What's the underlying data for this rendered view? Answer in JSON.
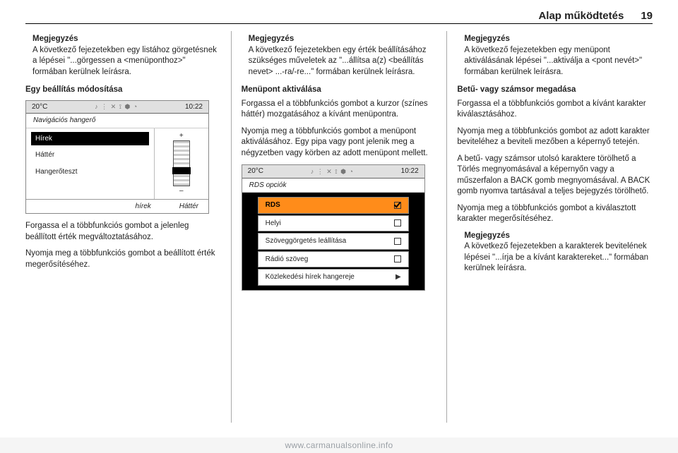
{
  "header": {
    "title": "Alap működtetés",
    "page": "19"
  },
  "watermark": "www.carmanualsonline.info",
  "col1": {
    "note": {
      "title": "Megjegyzés",
      "body": "A következő fejezetekben egy listához görgetésnek a lépései \"...görgessen a <menüponthoz>\" formában kerülnek leírásra."
    },
    "sect_title": "Egy beállítás módosítása",
    "para1": "Forgassa el a többfunkciós gombot a jelenleg beállított érték megváltoztatásához.",
    "para2": "Nyomja meg a többfunkciós gombot a beállított érték megerősítéséhez."
  },
  "col2": {
    "note": {
      "title": "Megjegyzés",
      "body": "A következő fejezetekben egy érték beállításához szükséges műveletek az \"...állítsa a(z) <beállítás nevet> ...-ra/-re...\" formában kerülnek leírásra."
    },
    "sect_title": "Menüpont aktiválása",
    "para1": "Forgassa el a többfunkciós gombot a kurzor (színes háttér) mozgatásához a kívánt menüpontra.",
    "para2": "Nyomja meg a többfunkciós gombot a menüpont aktiválásához. Egy pipa vagy pont jelenik meg a négyzetben vagy körben az adott menüpont mellett."
  },
  "col3": {
    "note1": {
      "title": "Megjegyzés",
      "body": "A következő fejezetekben egy menüpont aktiválásának lépései \"...aktiválja a <pont nevét>\" formában kerülnek leírásra."
    },
    "sect_title": "Betű- vagy számsor megadása",
    "para1": "Forgassa el a többfunkciós gombot a kívánt karakter kiválasztásához.",
    "para2": "Nyomja meg a többfunkciós gombot az adott karakter beviteléhez a beviteli mezőben a képernyő tetején.",
    "para3": "A betű- vagy számsor utolsó karaktere törölhető a Törlés megnyomásával a képernyőn vagy a műszerfalon a BACK gomb megnyomásával. A BACK gomb nyomva tartásával a teljes bejegyzés törölhető.",
    "para4": "Nyomja meg a többfunkciós gombot a kiválasztott karakter megerősítéséhez.",
    "note2": {
      "title": "Megjegyzés",
      "body": "A következő fejezetekben a karakterek bevitelének lépései \"...írja be a kívánt karaktereket...\" formában kerülnek leírásra."
    }
  },
  "shot1": {
    "temp": "20°C",
    "clock": "10:22",
    "title": "Navigációs hangerő",
    "items": [
      "Hírek",
      "Háttér",
      "Hangerőteszt"
    ],
    "selected_index": 0,
    "plus": "+",
    "minus": "–",
    "footer_left": "hírek",
    "footer_right": "Háttér",
    "colors": {
      "status_bg": "#e0e0e0",
      "sel_bg": "#000000",
      "sel_fg": "#ffffff"
    }
  },
  "shot2": {
    "temp": "20°C",
    "clock": "10:22",
    "title": "RDS opciók",
    "rows": [
      {
        "label": "RDS",
        "kind": "check",
        "checked": true,
        "selected": true
      },
      {
        "label": "Helyi",
        "kind": "check",
        "checked": false
      },
      {
        "label": "Szöveggörgetés leállítása",
        "kind": "check",
        "checked": false
      },
      {
        "label": "Rádió szöveg",
        "kind": "check",
        "checked": false
      },
      {
        "label": "Közlekedési hírek hangereje",
        "kind": "arrow"
      }
    ],
    "colors": {
      "panel_bg": "#000000",
      "row_bg": "#ffffff",
      "sel_bg": "#ff8c1a"
    }
  }
}
